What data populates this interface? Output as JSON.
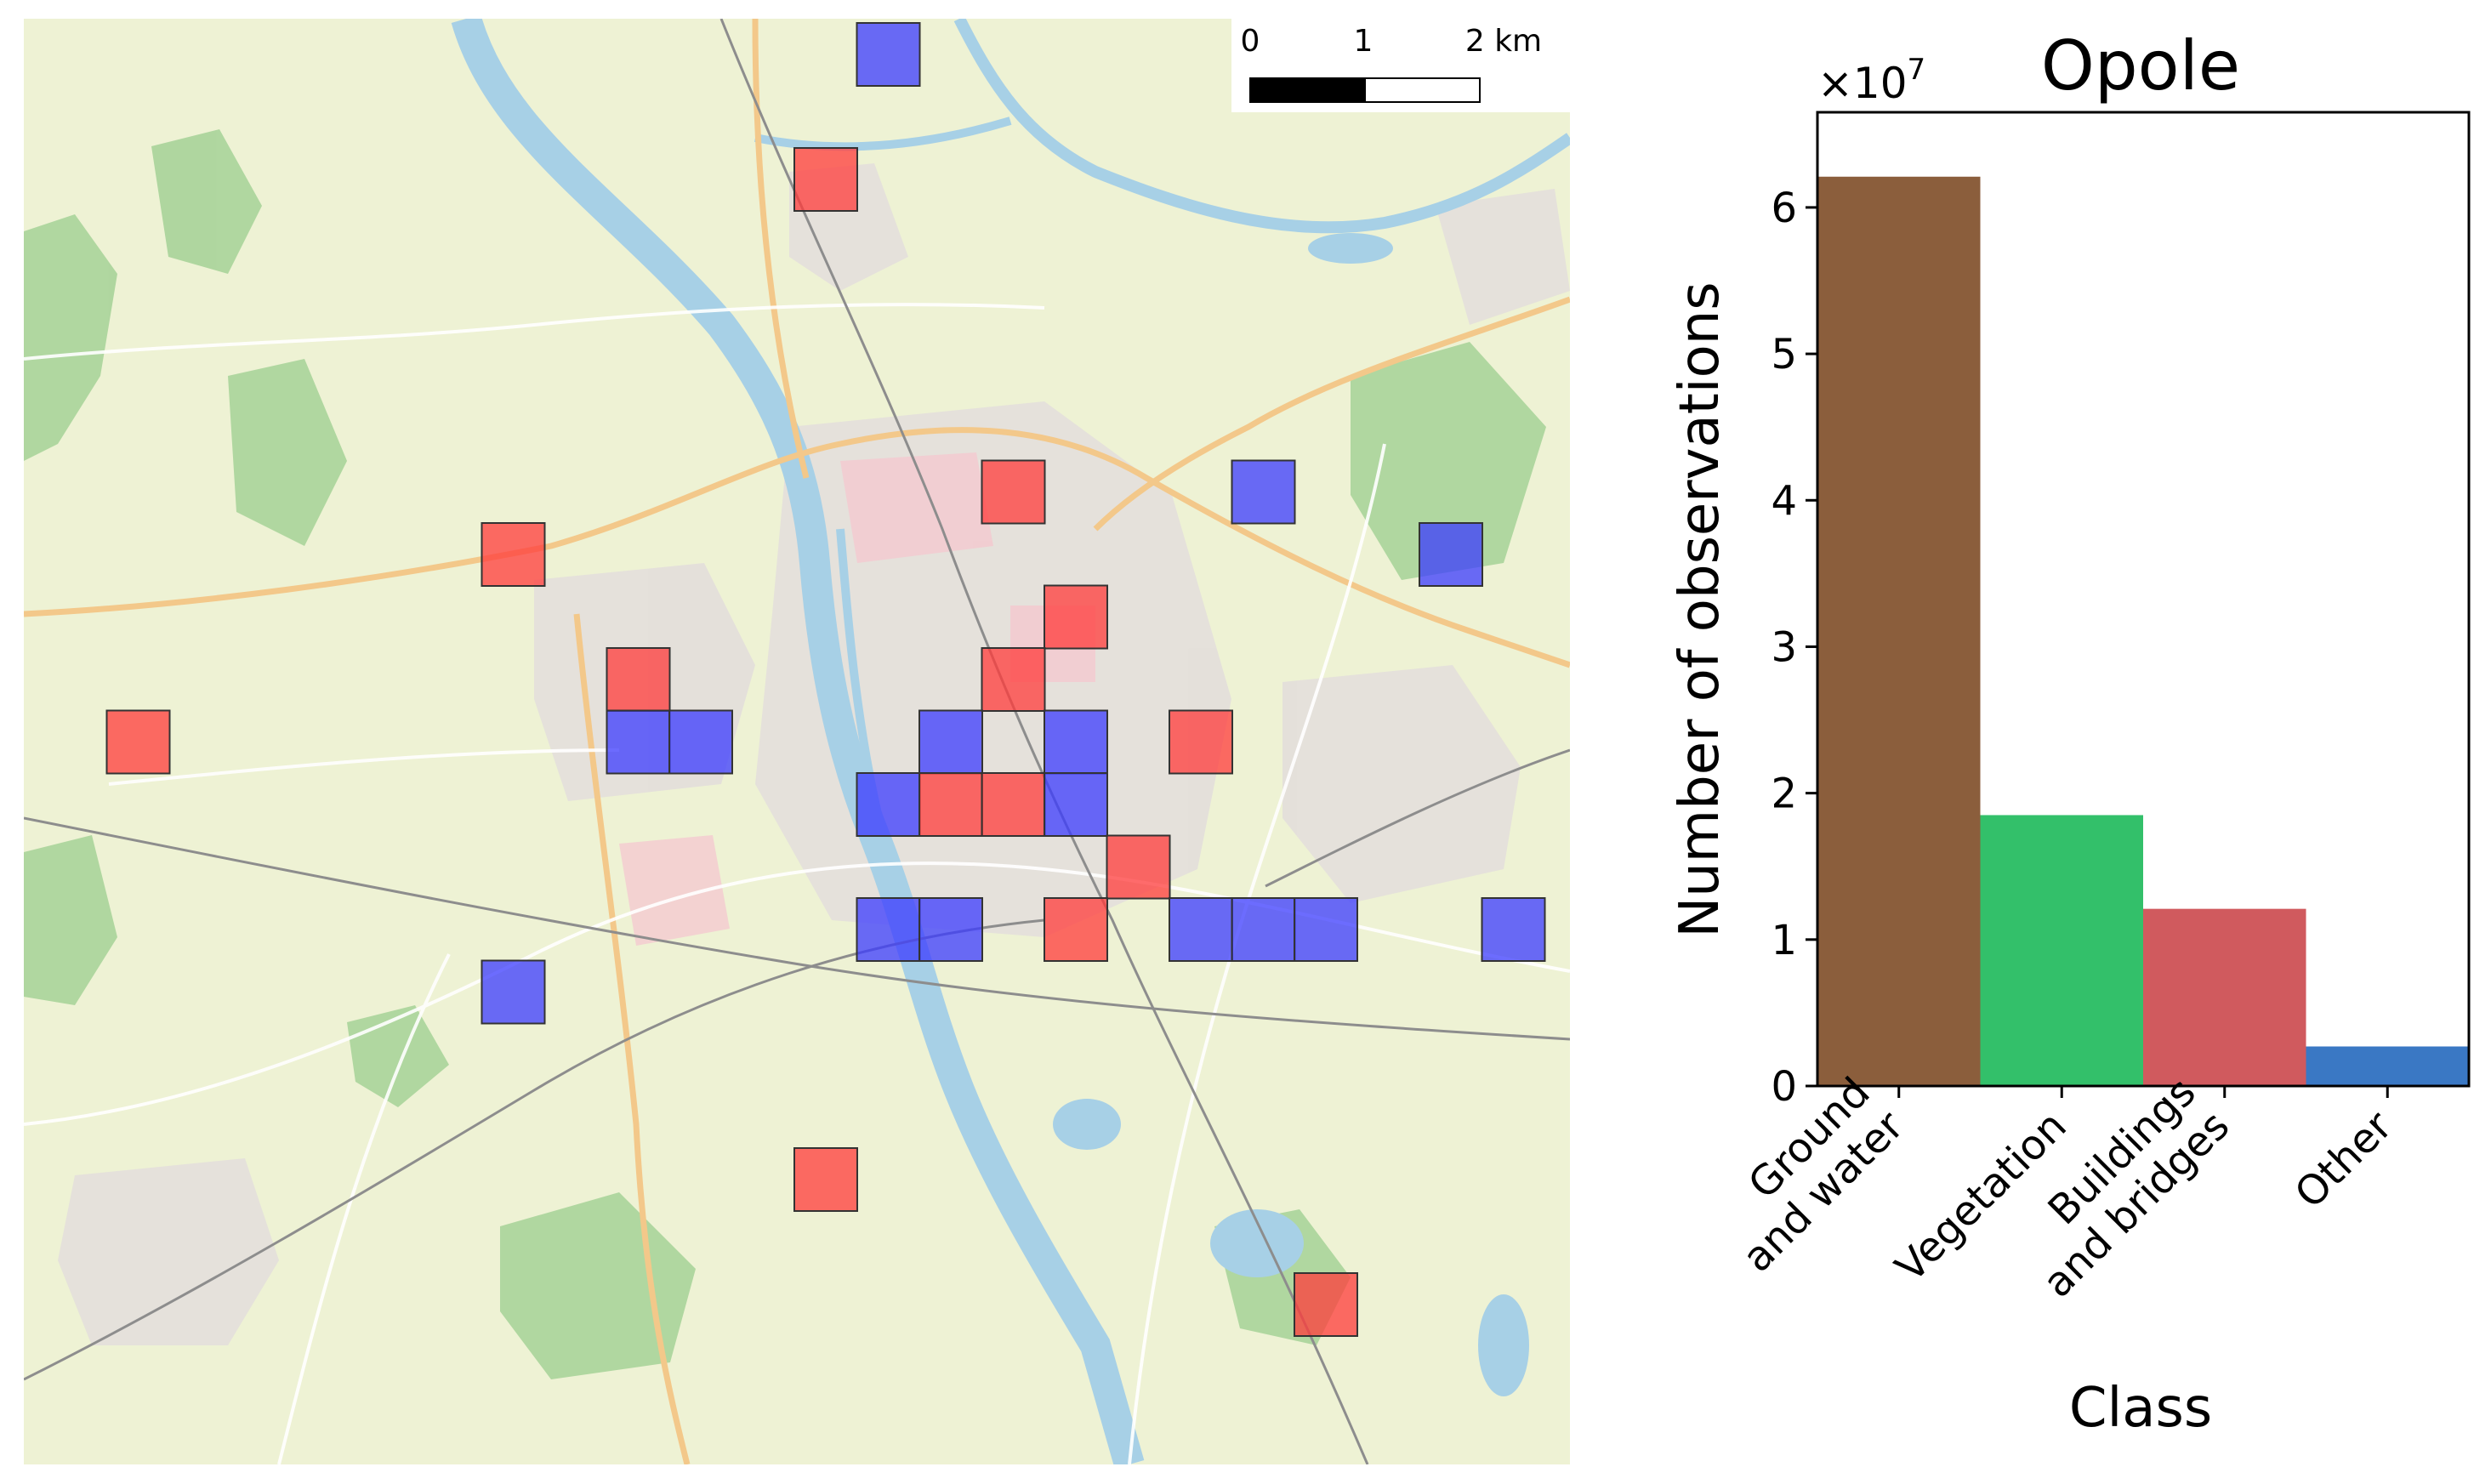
{
  "map": {
    "scale_bar": {
      "labels": [
        "0",
        "1",
        "2 km"
      ]
    },
    "tile_colors": {
      "red": "#ff3b3b",
      "blue": "#3b3bff"
    },
    "tiles": [
      {
        "c": "blue",
        "col": 13,
        "row": 0
      },
      {
        "c": "red",
        "col": 12,
        "row": 2
      },
      {
        "c": "red",
        "col": 15,
        "row": 7
      },
      {
        "c": "blue",
        "col": 19,
        "row": 7
      },
      {
        "c": "red",
        "col": 7,
        "row": 8
      },
      {
        "c": "blue",
        "col": 22,
        "row": 8
      },
      {
        "c": "red",
        "col": 16,
        "row": 9
      },
      {
        "c": "red",
        "col": 9,
        "row": 10
      },
      {
        "c": "red",
        "col": 15,
        "row": 10
      },
      {
        "c": "red",
        "col": 1,
        "row": 11
      },
      {
        "c": "blue",
        "col": 9,
        "row": 11
      },
      {
        "c": "blue",
        "col": 10,
        "row": 11
      },
      {
        "c": "blue",
        "col": 14,
        "row": 11
      },
      {
        "c": "blue",
        "col": 16,
        "row": 11
      },
      {
        "c": "red",
        "col": 18,
        "row": 11
      },
      {
        "c": "blue",
        "col": 13,
        "row": 12
      },
      {
        "c": "red",
        "col": 14,
        "row": 12
      },
      {
        "c": "red",
        "col": 15,
        "row": 12
      },
      {
        "c": "blue",
        "col": 16,
        "row": 12
      },
      {
        "c": "red",
        "col": 17,
        "row": 13
      },
      {
        "c": "blue",
        "col": 13,
        "row": 14
      },
      {
        "c": "blue",
        "col": 14,
        "row": 14
      },
      {
        "c": "red",
        "col": 16,
        "row": 14
      },
      {
        "c": "blue",
        "col": 18,
        "row": 14
      },
      {
        "c": "blue",
        "col": 19,
        "row": 14
      },
      {
        "c": "blue",
        "col": 20,
        "row": 14
      },
      {
        "c": "blue",
        "col": 23,
        "row": 14
      },
      {
        "c": "blue",
        "col": 7,
        "row": 15
      },
      {
        "c": "red",
        "col": 12,
        "row": 18
      },
      {
        "c": "red",
        "col": 20,
        "row": 20
      }
    ]
  },
  "chart_data": {
    "type": "bar",
    "title": "Opole",
    "xlabel": "Class",
    "ylabel": "Number of observations",
    "offset_label": "×10",
    "offset_exponent": "7",
    "categories": [
      {
        "lines": [
          "Ground",
          "and water"
        ]
      },
      {
        "lines": [
          "Vegetation"
        ]
      },
      {
        "lines": [
          "Buildings",
          "and bridges"
        ]
      },
      {
        "lines": [
          "Other"
        ]
      }
    ],
    "values": [
      62100000,
      18500000,
      12100000,
      2700000
    ],
    "colors": [
      "#8b5e3c",
      "#33c06a",
      "#d05a5e",
      "#3a78c4"
    ],
    "ylim": [
      0,
      66500000
    ],
    "yticks": [
      0,
      1,
      2,
      3,
      4,
      5,
      6
    ],
    "tick_scale": 10000000
  }
}
